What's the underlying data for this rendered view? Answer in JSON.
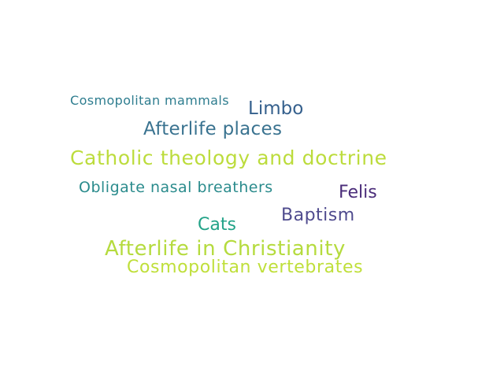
{
  "word_cloud": {
    "words": [
      {
        "text": "Cosmopolitan mammals",
        "color": "#2e7d8f"
      },
      {
        "text": "Limbo",
        "color": "#35608d"
      },
      {
        "text": "Afterlife places",
        "color": "#3a7390"
      },
      {
        "text": "Catholic theology and doctrine",
        "color": "#bcdc3c"
      },
      {
        "text": "Obligate nasal breathers",
        "color": "#2a8b8c"
      },
      {
        "text": "Felis",
        "color": "#4a2c79"
      },
      {
        "text": "Baptism",
        "color": "#4f4b8e"
      },
      {
        "text": "Cats",
        "color": "#23a388"
      },
      {
        "text": "Afterlife in Christianity",
        "color": "#b5db3e"
      },
      {
        "text": "Cosmopolitan vertebrates",
        "color": "#bfdf3a"
      }
    ]
  }
}
